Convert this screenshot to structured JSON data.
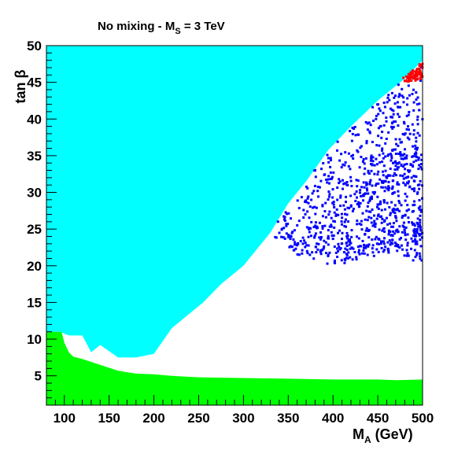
{
  "chart_data": {
    "type": "scatter",
    "title": {
      "main": "No mixing - M",
      "sub": "S",
      "tail": " = 3 TeV"
    },
    "xlabel": {
      "main": "M",
      "sub": "A",
      "tail": " (GeV)"
    },
    "ylabel": {
      "main": "tan ",
      "greek": "β"
    },
    "xlim": [
      80,
      500
    ],
    "ylim": [
      1,
      50
    ],
    "xticks": [
      100,
      150,
      200,
      250,
      300,
      350,
      400,
      450,
      500
    ],
    "yticks": [
      5,
      10,
      15,
      20,
      25,
      30,
      35,
      40,
      45,
      50
    ],
    "grid": false,
    "legend": "none",
    "colors": {
      "cyan_region": "#00ffff",
      "green_region": "#00ff00",
      "blue_points": "#0000ff",
      "red_points": "#ff0000",
      "frame": "#000000"
    },
    "regions": [
      {
        "color": "cyan",
        "boundary": [
          [
            80,
            50
          ],
          [
            500,
            50
          ],
          [
            500,
            48
          ],
          [
            480,
            45.5
          ],
          [
            450,
            42.5
          ],
          [
            420,
            39
          ],
          [
            395,
            35.8
          ],
          [
            370,
            31.5
          ],
          [
            350,
            28.5
          ],
          [
            330,
            24.5
          ],
          [
            300,
            20
          ],
          [
            275,
            17.5
          ],
          [
            255,
            15
          ],
          [
            240,
            13.5
          ],
          [
            220,
            11.5
          ],
          [
            200,
            8
          ],
          [
            180,
            7.5
          ],
          [
            160,
            7.5
          ],
          [
            140,
            9.2
          ],
          [
            130,
            8.2
          ],
          [
            120,
            10.5
          ],
          [
            105,
            10.5
          ],
          [
            95,
            11
          ],
          [
            80,
            11
          ]
        ]
      },
      {
        "color": "green",
        "boundary": [
          [
            80,
            1
          ],
          [
            500,
            1
          ],
          [
            500,
            4.5
          ],
          [
            470,
            4.4
          ],
          [
            450,
            4.5
          ],
          [
            400,
            4.5
          ],
          [
            350,
            4.6
          ],
          [
            300,
            4.7
          ],
          [
            250,
            4.8
          ],
          [
            220,
            5
          ],
          [
            200,
            5.2
          ],
          [
            180,
            5.3
          ],
          [
            160,
            5.7
          ],
          [
            140,
            6.5
          ],
          [
            120,
            7.3
          ],
          [
            110,
            7.6
          ],
          [
            105,
            8.2
          ],
          [
            100,
            9.5
          ],
          [
            97,
            11
          ],
          [
            80,
            11
          ]
        ]
      }
    ],
    "point_bands": [
      {
        "color": "blue",
        "x_range": [
          330,
          500
        ],
        "upper_edge": [
          [
            330,
            24.5
          ],
          [
            350,
            28.5
          ],
          [
            370,
            31.5
          ],
          [
            395,
            35.8
          ],
          [
            420,
            39
          ],
          [
            450,
            42.5
          ],
          [
            480,
            45.5
          ],
          [
            500,
            48
          ]
        ],
        "lower_edge": [
          [
            330,
            23
          ],
          [
            360,
            21.5
          ],
          [
            400,
            20
          ],
          [
            440,
            21
          ],
          [
            470,
            22
          ],
          [
            500,
            20
          ]
        ],
        "point_count": 950
      },
      {
        "color": "red",
        "x_range": [
          478,
          500
        ],
        "upper_edge": [
          [
            478,
            45.8
          ],
          [
            500,
            48
          ]
        ],
        "lower_edge": [
          [
            478,
            44.8
          ],
          [
            500,
            45.5
          ]
        ],
        "point_count": 70
      }
    ]
  }
}
